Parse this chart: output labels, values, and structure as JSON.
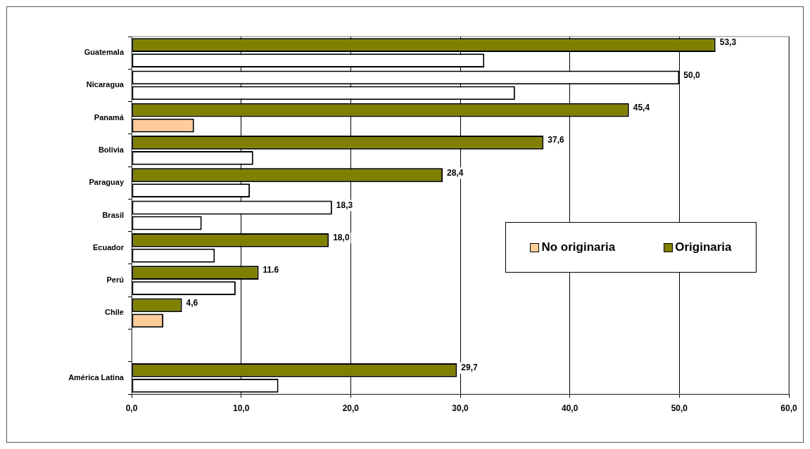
{
  "chart_data": {
    "type": "bar",
    "orientation": "horizontal",
    "categories": [
      "Guatemala",
      "Nicaragua",
      "Panamá",
      "Bolivia",
      "Paraguay",
      "Brasil",
      "Ecuador",
      "Perú",
      "Chile",
      null,
      "América Latina"
    ],
    "series": [
      {
        "name": "Originaria",
        "color": "#808000",
        "colors": [
          "#808000",
          "#ffffff",
          "#808000",
          "#808000",
          "#808000",
          "#ffffff",
          "#808000",
          "#808000",
          "#808000",
          "#808000",
          "#808000"
        ],
        "values": [
          53.3,
          50.0,
          45.4,
          37.6,
          28.4,
          18.3,
          18.0,
          11.6,
          4.6,
          null,
          29.7
        ],
        "value_labels": [
          "53,3",
          "50,0",
          "45,4",
          "37,6",
          "28,4",
          "18,3",
          "18,0",
          "11.6",
          "4,6",
          null,
          "29,7"
        ]
      },
      {
        "name": "No originaria",
        "color": "#ffcc99",
        "colors": [
          "#ffffff",
          "#ffffff",
          "#ffcc99",
          "#ffffff",
          "#ffffff",
          "#ffffff",
          "#ffffff",
          "#ffffff",
          "#ffcc99",
          null,
          "#ffffff"
        ],
        "values": [
          32.2,
          35.0,
          5.7,
          11.1,
          10.8,
          6.4,
          7.6,
          9.5,
          2.9,
          null,
          13.4
        ]
      }
    ],
    "xlim": [
      0,
      60
    ],
    "xticks": [
      {
        "value": 0,
        "label": "0,0"
      },
      {
        "value": 10,
        "label": "10,0"
      },
      {
        "value": 20,
        "label": "20,0"
      },
      {
        "value": 30,
        "label": "30,0"
      },
      {
        "value": 40,
        "label": "40,0"
      },
      {
        "value": 50,
        "label": "50,0"
      },
      {
        "value": 60,
        "label": "60,0"
      }
    ],
    "grid": "x",
    "legend": "right"
  }
}
